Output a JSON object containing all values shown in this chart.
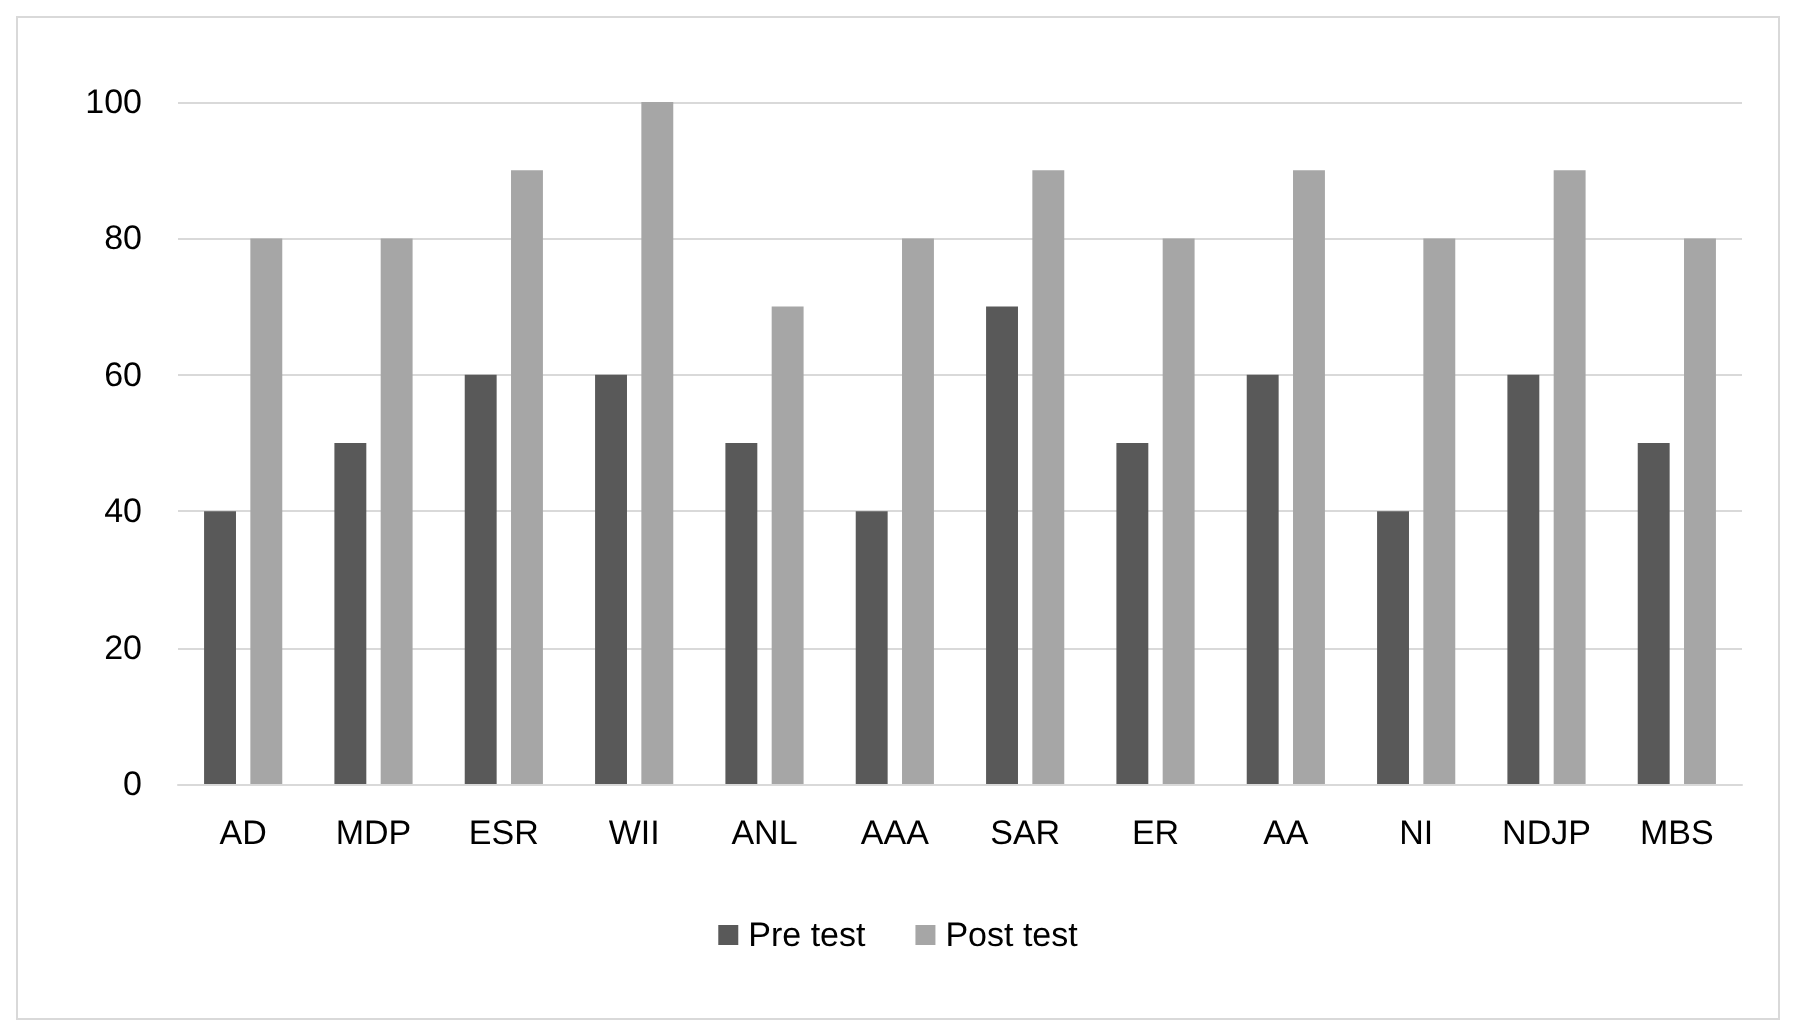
{
  "chart_data": {
    "type": "bar",
    "categories": [
      "AD",
      "MDP",
      "ESR",
      "WII",
      "ANL",
      "AAA",
      "SAR",
      "ER",
      "AA",
      "NI",
      "NDJP",
      "MBS"
    ],
    "series": [
      {
        "name": "Pre test",
        "color": "#595959",
        "values": [
          40,
          50,
          60,
          60,
          50,
          40,
          70,
          50,
          60,
          40,
          60,
          50
        ]
      },
      {
        "name": "Post test",
        "color": "#a6a6a6",
        "values": [
          80,
          80,
          90,
          100,
          70,
          80,
          90,
          80,
          90,
          80,
          90,
          80
        ]
      }
    ],
    "ylim": [
      0,
      100
    ],
    "yticks": [
      0,
      20,
      40,
      60,
      80,
      100
    ],
    "grid": "y",
    "legend": "bottom"
  }
}
